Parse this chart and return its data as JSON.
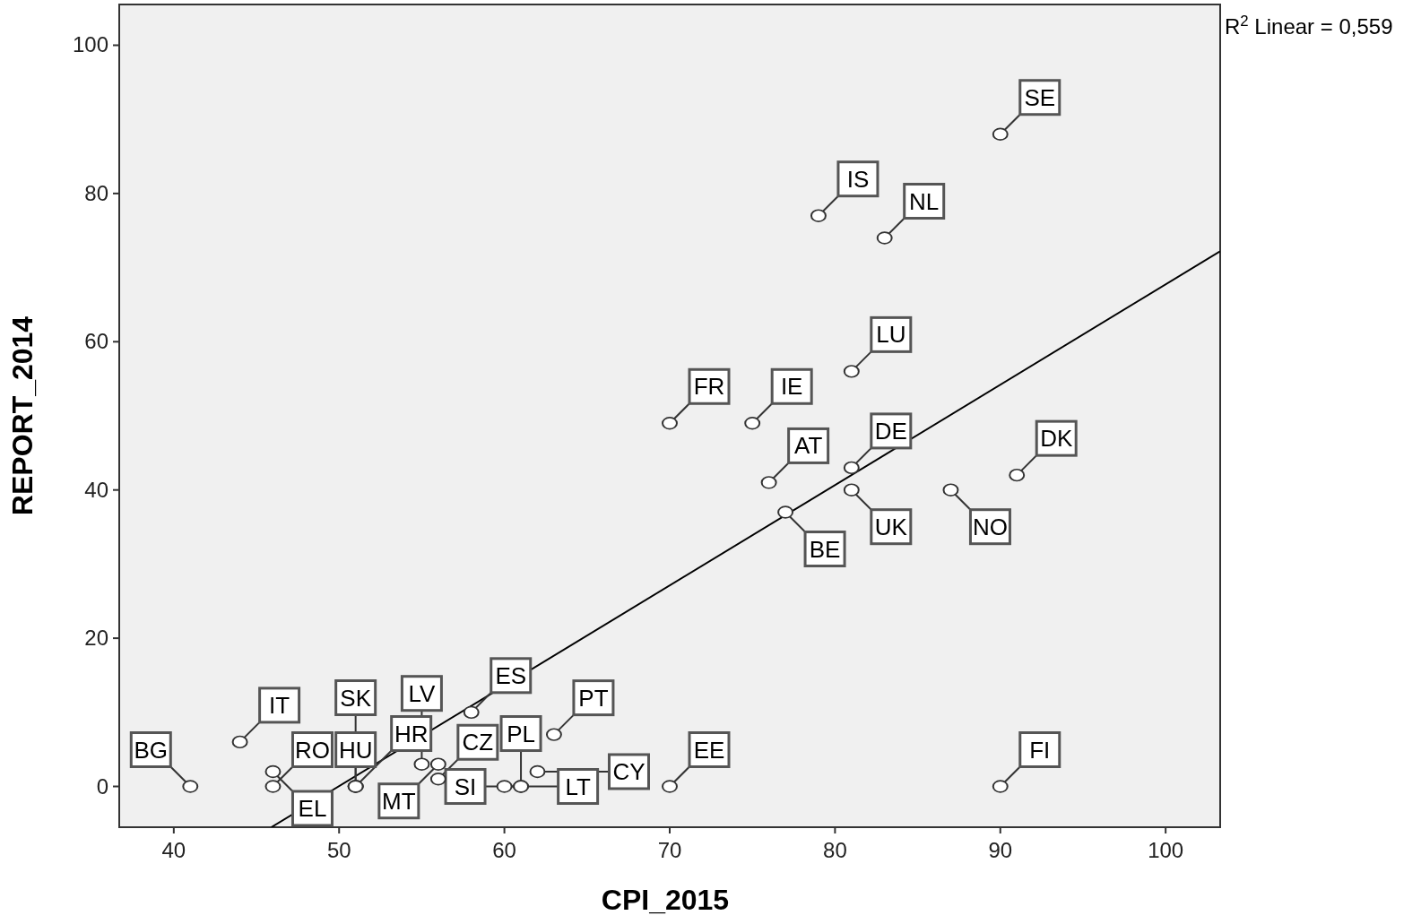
{
  "chart_data": {
    "type": "scatter",
    "xlabel": "CPI_2015",
    "ylabel": "REPORT_2014",
    "xlim": [
      36.7,
      103.3
    ],
    "ylim": [
      -5.5,
      105.5
    ],
    "xticks": [
      40,
      50,
      60,
      70,
      80,
      90,
      100
    ],
    "yticks": [
      0,
      20,
      40,
      60,
      80,
      100
    ],
    "annotations": [
      "R$^{2}$ Linear = 0,559"
    ],
    "series": [
      {
        "marker": "circle",
        "color": "#ffffff",
        "x": [
          90,
          79,
          83,
          81,
          70,
          75,
          76,
          81,
          77,
          81,
          87,
          91,
          58,
          63,
          44,
          46,
          46,
          41,
          51,
          51,
          51,
          56,
          55,
          56,
          60,
          61,
          62,
          61,
          70,
          90
        ],
        "values": [
          88,
          77,
          74,
          56,
          49,
          49,
          41,
          43,
          37,
          40,
          40,
          42,
          10,
          7,
          6,
          2,
          0,
          0,
          0,
          0,
          0,
          1,
          3,
          3,
          0,
          0,
          2,
          0,
          0,
          0
        ],
        "value_labels": [
          "SE",
          "IS",
          "NL",
          "LU",
          "FR",
          "IE",
          "AT",
          "DE",
          "BE",
          "UK",
          "NO",
          "DK",
          "ES",
          "PT",
          "IT",
          "EL",
          "RO",
          "BG",
          "HU",
          "HR",
          "SK",
          "CZ",
          "LV",
          "MT",
          "LT",
          "SI",
          "CY",
          "PL",
          "EE",
          "FI"
        ]
      },
      {
        "type": "line",
        "color": "#000000",
        "x": [
          45.9,
          103.3
        ],
        "values": [
          -5.5,
          72.2
        ]
      }
    ]
  }
}
